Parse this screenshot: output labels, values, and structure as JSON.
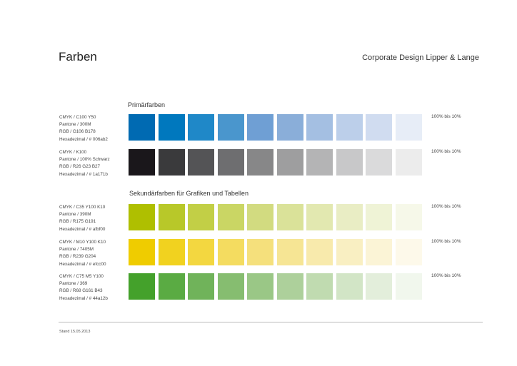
{
  "page": {
    "title": "Farben",
    "brand": "Corporate Design Lipper & Lange"
  },
  "sections": {
    "primary": "Primärfarben",
    "secondary": "Sekundärfarben für Grafiken und Tabellen"
  },
  "rows": [
    {
      "lines": [
        "CMYK / C100 Y50",
        "Pantone / 300M",
        "RGB / G106 B178",
        "Hexadezimal  / # 006ab2"
      ],
      "range": "100% bis 10%",
      "base": "#006ab2",
      "swatches": [
        "#006ab2",
        "#0078be",
        "#1f88c8",
        "#4a96cd",
        "#6f9fd4",
        "#8aaed9",
        "#a4bfe2",
        "#bccfea",
        "#d0dcf0",
        "#e7edf7"
      ]
    },
    {
      "lines": [
        "CMYK / K100",
        "Pantone / 100% Schwarz",
        "RGB / R26 G23 B27",
        "Hexadezimal  / # 1a171b"
      ],
      "range": "100% bis 10%",
      "base": "#1a171b",
      "swatches": [
        "#1a171b",
        "#3a3a3c",
        "#545456",
        "#6e6e70",
        "#878788",
        "#9e9e9f",
        "#b4b4b5",
        "#c8c8c9",
        "#dadadb",
        "#ececec"
      ]
    },
    {
      "lines": [
        "CMYK / C35 Y100 K10",
        "Pantone / 390M",
        "RGB / R175 G191",
        "Hexadezimal  / # afbf00"
      ],
      "range": "100% bis 10%",
      "base": "#afbf00",
      "swatches": [
        "#afbf00",
        "#b8c829",
        "#c2cf46",
        "#cad664",
        "#d2db80",
        "#dae299",
        "#e2e8b0",
        "#e9edc4",
        "#eff3d6",
        "#f6f8e9"
      ]
    },
    {
      "lines": [
        "CMYK / M10 Y100 K10",
        "Pantone / 7405M",
        "RGB / R239 G204",
        "Hexadezimal  / # efcc00"
      ],
      "range": "100% bis 10%",
      "base": "#efcc00",
      "swatches": [
        "#efcc00",
        "#f1d21f",
        "#f3d740",
        "#f4dc60",
        "#f5e07c",
        "#f6e594",
        "#f8eaac",
        "#f9efc2",
        "#fbf4d6",
        "#fdf9ea"
      ]
    },
    {
      "lines": [
        "CMYK / C75 M5 Y100",
        "Pantone / 369",
        "RGB / R68 G161 B43",
        "Hexadezimal  / # 44a12b"
      ],
      "range": "100% bis 10%",
      "base": "#44a12b",
      "swatches": [
        "#44a12b",
        "#5aab43",
        "#70b35a",
        "#86bd70",
        "#9ac786",
        "#add09b",
        "#c0dbb0",
        "#d2e5c6",
        "#e3eedb",
        "#f1f7ed"
      ]
    }
  ],
  "footer": {
    "stand": "Stand 15.05.2013"
  }
}
